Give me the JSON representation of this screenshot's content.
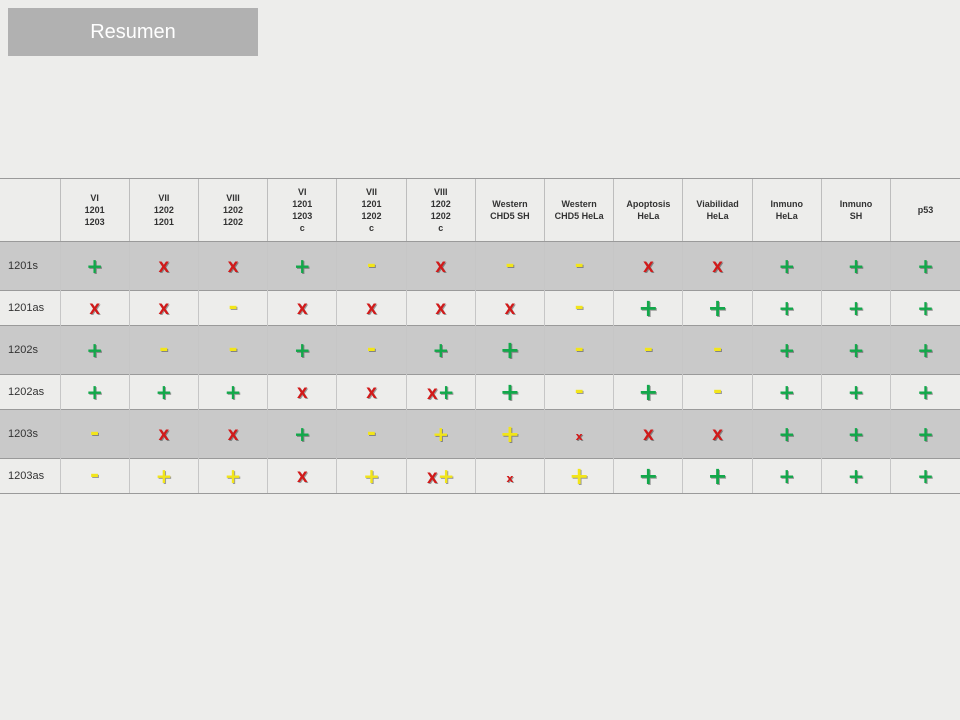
{
  "title": "Resumen",
  "colors": {
    "green": "#12a84a",
    "red": "#d11a1a",
    "yellow": "#f2e51a"
  },
  "columns": [
    "VI\n1201\n1203",
    "VII\n1202\n1201",
    "VIII\n1202\n1202",
    "VI\n1201\n1203\nc",
    "VII\n1201\n1202\nc",
    "VIII\n1202\n1202\nc",
    "Western\nCHD5 SH",
    "Western\nCHD5 HeLa",
    "Apoptosis\nHeLa",
    "Viabilidad\nHeLa",
    "Inmuno\nHeLa",
    "Inmuno\nSH",
    "p53"
  ],
  "rows": [
    {
      "label": "1201s",
      "style": "dark",
      "cells": [
        [
          {
            "t": "+",
            "c": "green",
            "s": "plus"
          }
        ],
        [
          {
            "t": "X",
            "c": "red",
            "s": "x"
          }
        ],
        [
          {
            "t": "X",
            "c": "red",
            "s": "x"
          }
        ],
        [
          {
            "t": "+",
            "c": "green",
            "s": "plus"
          }
        ],
        [
          {
            "t": "-",
            "c": "yellow",
            "s": "minus"
          }
        ],
        [
          {
            "t": "X",
            "c": "red",
            "s": "x"
          }
        ],
        [
          {
            "t": "-",
            "c": "yellow",
            "s": "minus"
          }
        ],
        [
          {
            "t": "-",
            "c": "yellow",
            "s": "minus"
          }
        ],
        [
          {
            "t": "X",
            "c": "red",
            "s": "x"
          }
        ],
        [
          {
            "t": "X",
            "c": "red",
            "s": "x"
          }
        ],
        [
          {
            "t": "+",
            "c": "green",
            "s": "plus"
          }
        ],
        [
          {
            "t": "+",
            "c": "green",
            "s": "plus"
          }
        ],
        [
          {
            "t": "+",
            "c": "green",
            "s": "plus"
          }
        ]
      ]
    },
    {
      "label": "1201as",
      "style": "light",
      "cells": [
        [
          {
            "t": "X",
            "c": "red",
            "s": "x"
          }
        ],
        [
          {
            "t": "X",
            "c": "red",
            "s": "x"
          }
        ],
        [
          {
            "t": "-",
            "c": "yellow",
            "s": "minus"
          }
        ],
        [
          {
            "t": "X",
            "c": "red",
            "s": "x"
          }
        ],
        [
          {
            "t": "X",
            "c": "red",
            "s": "x"
          }
        ],
        [
          {
            "t": "X",
            "c": "red",
            "s": "x"
          }
        ],
        [
          {
            "t": "X",
            "c": "red",
            "s": "x"
          }
        ],
        [
          {
            "t": "-",
            "c": "yellow",
            "s": "minus"
          }
        ],
        [
          {
            "t": "+",
            "c": "green",
            "s": "big"
          }
        ],
        [
          {
            "t": "+",
            "c": "green",
            "s": "big"
          }
        ],
        [
          {
            "t": "+",
            "c": "green",
            "s": "plus"
          }
        ],
        [
          {
            "t": "+",
            "c": "green",
            "s": "plus"
          }
        ],
        [
          {
            "t": "+",
            "c": "green",
            "s": "plus"
          }
        ]
      ]
    },
    {
      "label": "1202s",
      "style": "dark",
      "cells": [
        [
          {
            "t": "+",
            "c": "green",
            "s": "plus"
          }
        ],
        [
          {
            "t": "-",
            "c": "yellow",
            "s": "minus"
          }
        ],
        [
          {
            "t": "-",
            "c": "yellow",
            "s": "minus"
          }
        ],
        [
          {
            "t": "+",
            "c": "green",
            "s": "plus"
          }
        ],
        [
          {
            "t": "-",
            "c": "yellow",
            "s": "minus"
          }
        ],
        [
          {
            "t": "+",
            "c": "green",
            "s": "plus"
          }
        ],
        [
          {
            "t": "+",
            "c": "green",
            "s": "big"
          }
        ],
        [
          {
            "t": "-",
            "c": "yellow",
            "s": "minus"
          }
        ],
        [
          {
            "t": "-",
            "c": "yellow",
            "s": "minus"
          }
        ],
        [
          {
            "t": "-",
            "c": "yellow",
            "s": "minus"
          }
        ],
        [
          {
            "t": "+",
            "c": "green",
            "s": "plus"
          }
        ],
        [
          {
            "t": "+",
            "c": "green",
            "s": "plus"
          }
        ],
        [
          {
            "t": "+",
            "c": "green",
            "s": "plus"
          }
        ]
      ]
    },
    {
      "label": "1202as",
      "style": "light",
      "cells": [
        [
          {
            "t": "+",
            "c": "green",
            "s": "plus"
          }
        ],
        [
          {
            "t": "+",
            "c": "green",
            "s": "plus"
          }
        ],
        [
          {
            "t": "+",
            "c": "green",
            "s": "plus"
          }
        ],
        [
          {
            "t": "X",
            "c": "red",
            "s": "x"
          }
        ],
        [
          {
            "t": "X",
            "c": "red",
            "s": "x"
          }
        ],
        [
          {
            "t": "X",
            "c": "red",
            "s": "x"
          },
          {
            "t": "+",
            "c": "green",
            "s": "plus"
          }
        ],
        [
          {
            "t": "+",
            "c": "green",
            "s": "big"
          }
        ],
        [
          {
            "t": "-",
            "c": "yellow",
            "s": "minus"
          }
        ],
        [
          {
            "t": "+",
            "c": "green",
            "s": "big"
          }
        ],
        [
          {
            "t": "-",
            "c": "yellow",
            "s": "minus"
          }
        ],
        [
          {
            "t": "+",
            "c": "green",
            "s": "plus"
          }
        ],
        [
          {
            "t": "+",
            "c": "green",
            "s": "plus"
          }
        ],
        [
          {
            "t": "+",
            "c": "green",
            "s": "plus"
          }
        ]
      ]
    },
    {
      "label": "1203s",
      "style": "dark",
      "cells": [
        [
          {
            "t": "-",
            "c": "yellow",
            "s": "minus"
          }
        ],
        [
          {
            "t": "X",
            "c": "red",
            "s": "x"
          }
        ],
        [
          {
            "t": "X",
            "c": "red",
            "s": "x"
          }
        ],
        [
          {
            "t": "+",
            "c": "green",
            "s": "plus"
          }
        ],
        [
          {
            "t": "-",
            "c": "yellow",
            "s": "minus"
          }
        ],
        [
          {
            "t": "+",
            "c": "yellow",
            "s": "plus"
          }
        ],
        [
          {
            "t": "+",
            "c": "yellow",
            "s": "big"
          }
        ],
        [
          {
            "t": "x",
            "c": "red",
            "s": "xs"
          }
        ],
        [
          {
            "t": "X",
            "c": "red",
            "s": "x"
          }
        ],
        [
          {
            "t": "X",
            "c": "red",
            "s": "x"
          }
        ],
        [
          {
            "t": "+",
            "c": "green",
            "s": "plus"
          }
        ],
        [
          {
            "t": "+",
            "c": "green",
            "s": "plus"
          }
        ],
        [
          {
            "t": "+",
            "c": "green",
            "s": "plus"
          }
        ]
      ]
    },
    {
      "label": "1203as",
      "style": "light",
      "cells": [
        [
          {
            "t": "-",
            "c": "yellow",
            "s": "minus"
          }
        ],
        [
          {
            "t": "+",
            "c": "yellow",
            "s": "plus"
          }
        ],
        [
          {
            "t": "+",
            "c": "yellow",
            "s": "plus"
          }
        ],
        [
          {
            "t": "X",
            "c": "red",
            "s": "x"
          }
        ],
        [
          {
            "t": "+",
            "c": "yellow",
            "s": "plus"
          }
        ],
        [
          {
            "t": "X",
            "c": "red",
            "s": "x"
          },
          {
            "t": "+",
            "c": "yellow",
            "s": "plus"
          }
        ],
        [
          {
            "t": "x",
            "c": "red",
            "s": "xs"
          }
        ],
        [
          {
            "t": "+",
            "c": "yellow",
            "s": "big"
          }
        ],
        [
          {
            "t": "+",
            "c": "green",
            "s": "big"
          }
        ],
        [
          {
            "t": "+",
            "c": "green",
            "s": "big"
          }
        ],
        [
          {
            "t": "+",
            "c": "green",
            "s": "plus"
          }
        ],
        [
          {
            "t": "+",
            "c": "green",
            "s": "plus"
          }
        ],
        [
          {
            "t": "+",
            "c": "green",
            "s": "plus"
          }
        ]
      ]
    }
  ]
}
